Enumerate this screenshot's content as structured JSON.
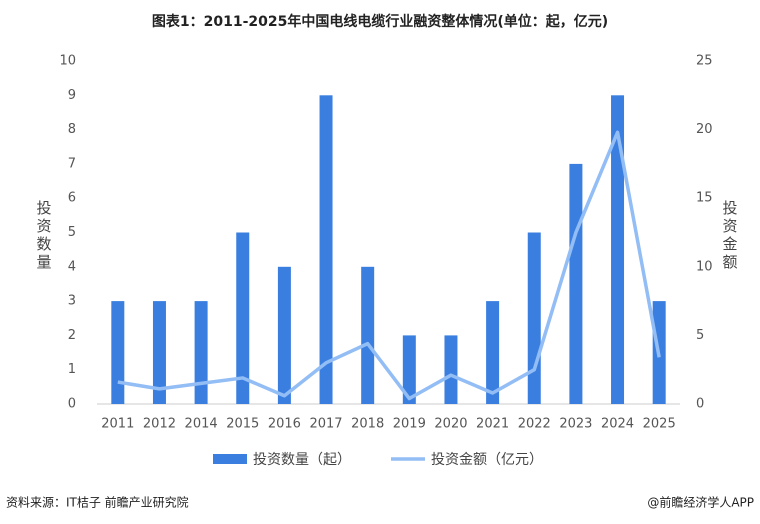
{
  "chart_data": {
    "type": "bar",
    "title": "图表1：2011-2025年中国电线电缆行业融资整体情况(单位：起，亿元)",
    "y_label": "投资数量",
    "y2_label": "投资金额",
    "categories": [
      "2011",
      "2012",
      "2014",
      "2015",
      "2016",
      "2017",
      "2018",
      "2019",
      "2020",
      "2021",
      "2022",
      "2023",
      "2024",
      "2025"
    ],
    "series": [
      {
        "name": "投资数量（起）",
        "type": "bar",
        "color": "#3a7fe0",
        "values": [
          3,
          3,
          3,
          5,
          4,
          9,
          4,
          2,
          2,
          3,
          5,
          7,
          9,
          3
        ]
      },
      {
        "name": "投资金额（亿元）",
        "type": "line",
        "axis": "y2",
        "color": "#93bdf5",
        "values": [
          1.6,
          1.1,
          1.5,
          1.9,
          0.6,
          3.0,
          4.4,
          0.4,
          2.1,
          0.8,
          2.5,
          12.5,
          19.8,
          3.4
        ]
      }
    ],
    "ylim": [
      0,
      10
    ],
    "yticks": [
      0,
      1,
      2,
      3,
      4,
      5,
      6,
      7,
      8,
      9,
      10
    ],
    "y2lim": [
      0,
      25
    ],
    "y2ticks": [
      0,
      5,
      10,
      15,
      20,
      25
    ],
    "source": "资料来源：IT桔子 前瞻产业研究院",
    "credit": "@前瞻经济学人APP"
  }
}
